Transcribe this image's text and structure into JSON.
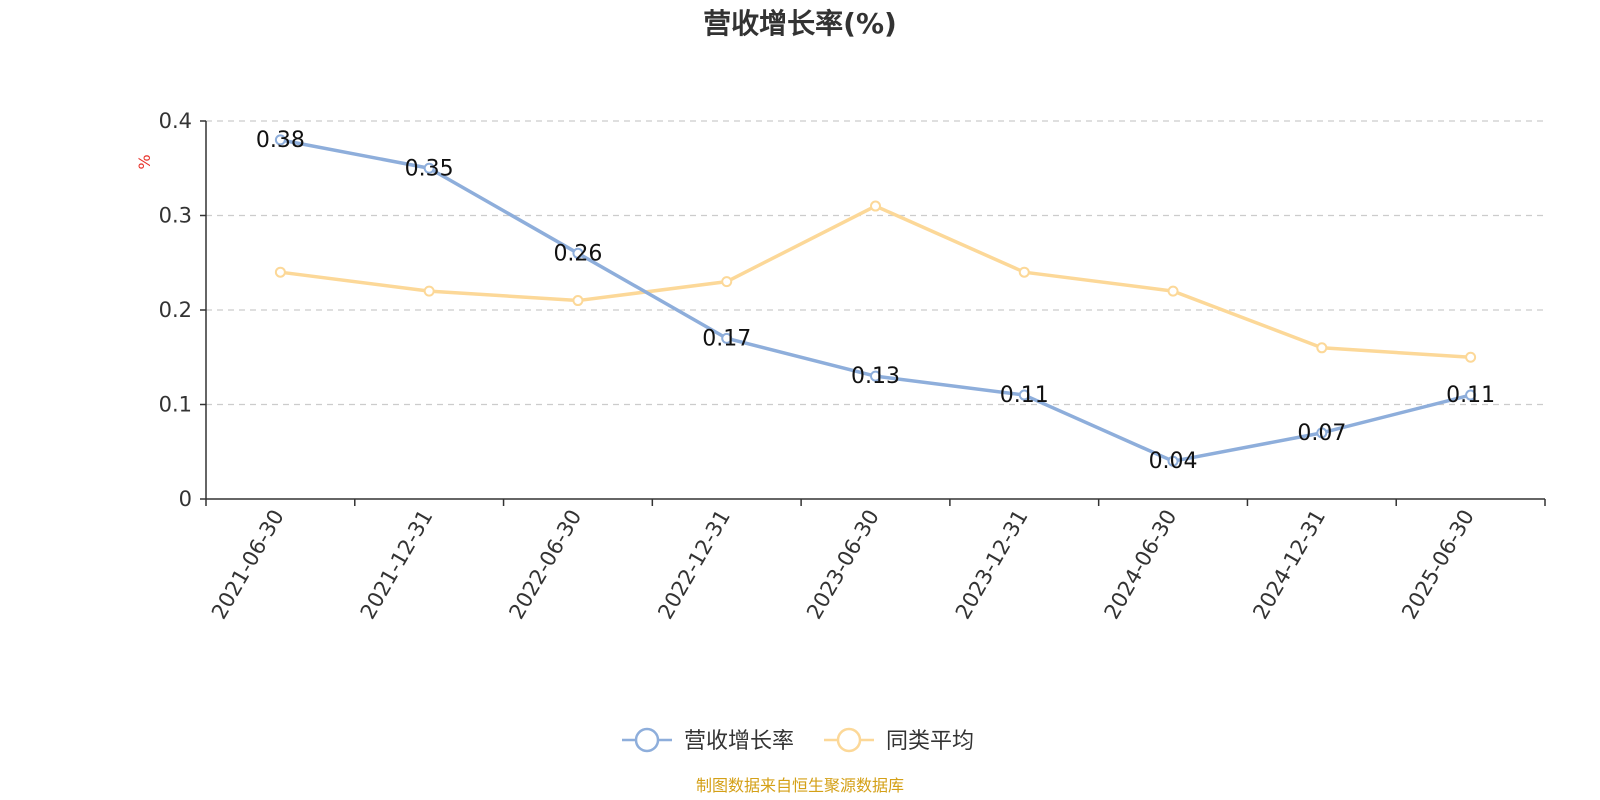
{
  "chart_data": {
    "type": "line",
    "title": "营收增长率(%)",
    "ylabel": "%",
    "ylim": [
      0,
      0.4
    ],
    "yticks": [
      "0",
      "0.1",
      "0.2",
      "0.3",
      "0.4"
    ],
    "categories": [
      "2021-06-30",
      "2021-12-31",
      "2022-06-30",
      "2022-12-31",
      "2023-06-30",
      "2023-12-31",
      "2024-06-30",
      "2024-12-31",
      "2025-06-30"
    ],
    "series": [
      {
        "name": "营收增长率",
        "values": [
          0.38,
          0.35,
          0.26,
          0.17,
          0.13,
          0.11,
          0.04,
          0.07,
          0.11
        ],
        "color": "#8eaedb",
        "data_labels": [
          "0.38",
          "0.35",
          "0.26",
          "0.17",
          "0.13",
          "0.11",
          "0.04",
          "0.07",
          "0.11"
        ]
      },
      {
        "name": "同类平均",
        "values": [
          0.24,
          0.22,
          0.21,
          0.23,
          0.31,
          0.24,
          0.22,
          0.16,
          0.15
        ],
        "color": "#fcd898"
      }
    ],
    "grid": true,
    "legend_position": "bottom-center",
    "unit_color": "#e8322a"
  },
  "source": {
    "text": "制图数据来自恒生聚源数据库",
    "color": "#d4a017"
  }
}
